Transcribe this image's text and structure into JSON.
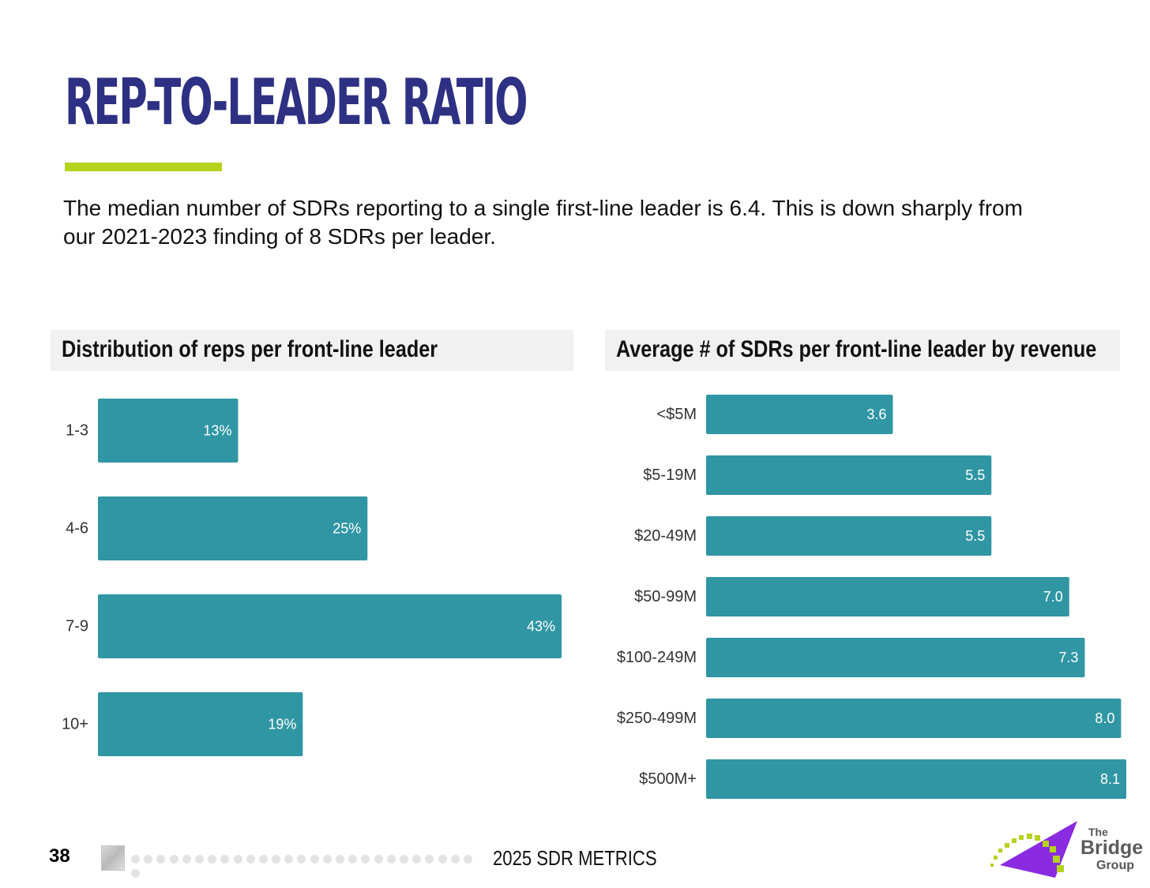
{
  "page": {
    "title": "REP-TO-LEADER RATIO",
    "description": "The median number of SDRs reporting to a single first-line leader is 6.4. This is down sharply from our 2021-2023 finding of 8 SDRs per leader.",
    "accent_color": "#b3d31f",
    "title_color": "#2e3083",
    "bar_color": "#3096a4"
  },
  "chart_data": [
    {
      "type": "bar",
      "orientation": "horizontal",
      "title": "Distribution of reps per front-line leader",
      "categories": [
        "1-3",
        "4-6",
        "7-9",
        "10+"
      ],
      "values": [
        13,
        25,
        43,
        19
      ],
      "value_labels": [
        "13%",
        "25%",
        "43%",
        "19%"
      ],
      "unit": "%",
      "xlim": [
        0,
        43
      ],
      "grid": false,
      "legend": "none"
    },
    {
      "type": "bar",
      "orientation": "horizontal",
      "title": "Average # of SDRs per front-line leader by revenue",
      "categories": [
        "<$5M",
        "$5-19M",
        "$20-49M",
        "$50-99M",
        "$100-249M",
        "$250-499M",
        "$500M+"
      ],
      "values": [
        3.6,
        5.5,
        5.5,
        7.0,
        7.3,
        8.0,
        8.1
      ],
      "value_labels": [
        "3.6",
        "5.5",
        "5.5",
        "7.0",
        "7.3",
        "8.0",
        "8.1"
      ],
      "xlim": [
        0,
        8.1
      ],
      "grid": false,
      "legend": "none"
    }
  ],
  "footer": {
    "page_number": "38",
    "report_title": "2025 SDR METRICS"
  },
  "logo": {
    "line1": "The",
    "line2": "Bridge",
    "line3": "Group"
  }
}
